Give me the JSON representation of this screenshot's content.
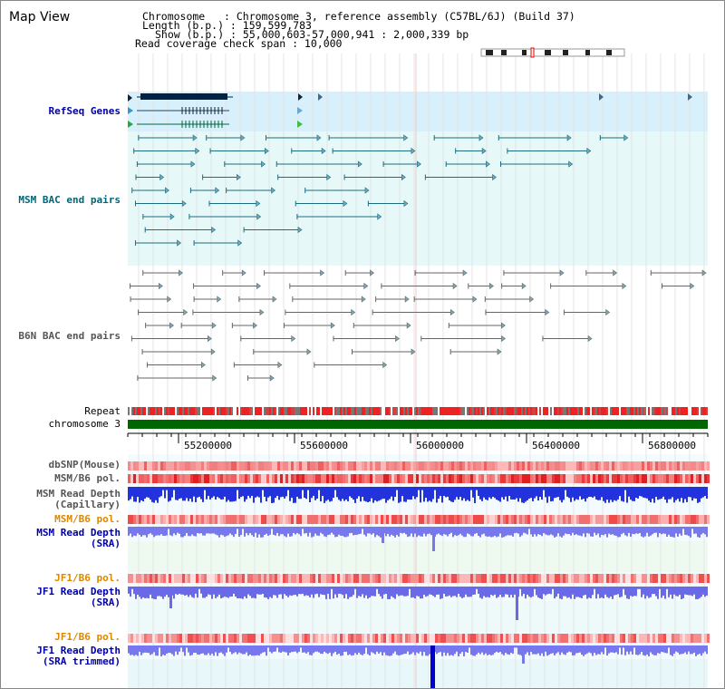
{
  "header": {
    "title": "Map View",
    "chromosome_line": "Chromosome   : Chromosome 3, reference assembly (C57BL/6J) (Build 37)",
    "length_line": "Length (b.p.) : 159,599,783",
    "show_line": "Show (b.p.) : 55,000,603-57,000,941 : 2,000,339 bp",
    "coverage_line": "Read coverage check span : 10,000"
  },
  "tracks": {
    "refseq": "RefSeq Genes",
    "msm_bac": "MSM BAC end pairs",
    "b6n_bac": "B6N BAC end pairs",
    "repeat": "Repeat",
    "chromosome": "chromosome 3",
    "dbsnp": "dbSNP(Mouse)",
    "msm_b6_pol_1": "MSM/B6 pol.",
    "msm_read_depth_cap_1": "MSM Read Depth",
    "msm_read_depth_cap_2": "(Capillary)",
    "msm_b6_pol_2": "MSM/B6 pol.",
    "msm_read_depth_sra_1": "MSM Read Depth",
    "msm_read_depth_sra_2": "(SRA)",
    "jf1_b6_pol_1": "JF1/B6 pol.",
    "jf1_read_depth_sra_1": "JF1 Read Depth",
    "jf1_read_depth_sra_2": "(SRA)",
    "jf1_b6_pol_2": "JF1/B6 pol.",
    "jf1_read_depth_trim_1": "JF1 Read Depth",
    "jf1_read_depth_trim_2": "(SRA trimmed)"
  },
  "axis": {
    "ticks": [
      "55200000",
      "55600000",
      "56000000",
      "56400000",
      "56800000"
    ]
  },
  "colors": {
    "refseq_bg": "#d8f0fb",
    "msm_bg": "#e6f8f8",
    "msm_label": "#006677",
    "refseq_label": "#0000aa",
    "orange_label": "#dd8800",
    "blue_label": "#0000aa",
    "grey_label": "#555555",
    "chromosome_bar": "#006600"
  }
}
